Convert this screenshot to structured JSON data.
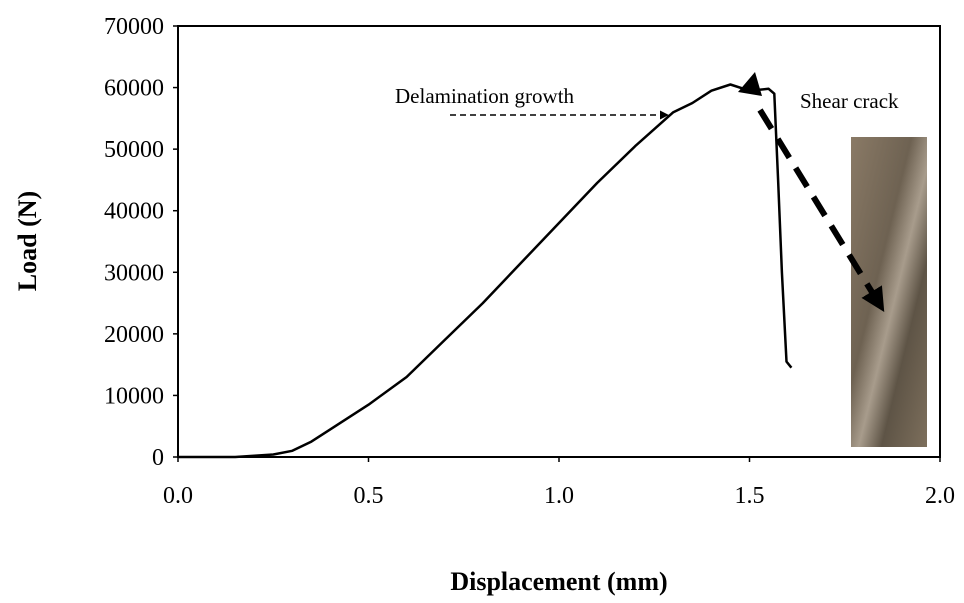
{
  "chart_data": {
    "type": "line",
    "x_label": "Displacement (mm)",
    "y_label": "Load (N)",
    "x": [
      0,
      0.15,
      0.2,
      0.25,
      0.3,
      0.35,
      0.4,
      0.5,
      0.6,
      0.7,
      0.8,
      0.9,
      1.0,
      1.1,
      1.2,
      1.3,
      1.35,
      1.4,
      1.45,
      1.5,
      1.55,
      1.565,
      1.575,
      1.585,
      1.597,
      1.61
    ],
    "values": [
      0,
      0,
      200,
      400,
      1000,
      2500,
      4500,
      8500,
      13000,
      19000,
      25000,
      31500,
      38000,
      44500,
      50500,
      56000,
      57500,
      59500,
      60500,
      59500,
      59800,
      59000,
      45000,
      30000,
      15500,
      14500
    ],
    "color": "#000000",
    "xlim": [
      0,
      2
    ],
    "xticks": [
      {
        "value": 0,
        "label": "0.0"
      },
      0.5,
      {
        "value": 1,
        "label": "1.0"
      },
      1.5,
      {
        "value": 2,
        "label": "2.0"
      }
    ],
    "ylim": [
      0,
      70000
    ],
    "yticks": [
      0,
      10000,
      20000,
      30000,
      40000,
      50000,
      60000,
      70000
    ],
    "grid": false,
    "annotations": [
      "Delamination growth",
      "Shear crack"
    ]
  }
}
